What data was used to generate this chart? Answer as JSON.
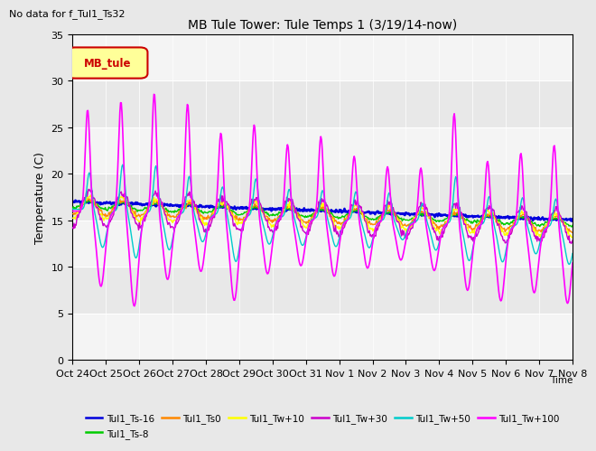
{
  "title": "MB Tule Tower: Tule Temps 1 (3/19/14-now)",
  "top_left_text": "No data for f_Tul1_Ts32",
  "ylabel": "Temperature (C)",
  "ylim": [
    0,
    35
  ],
  "yticks": [
    0,
    5,
    10,
    15,
    20,
    25,
    30,
    35
  ],
  "legend_box_label": "MB_tule",
  "legend_box_color": "#ffff99",
  "legend_box_border": "#cc0000",
  "background_color": "#e8e8e8",
  "plot_bg_color": "#e8e8e8",
  "x_labels": [
    "Oct 24",
    "Oct 25",
    "Oct 26",
    "Oct 27",
    "Oct 28",
    "Oct 29",
    "Oct 30",
    "Oct 31",
    "Nov 1",
    "Nov 2",
    "Nov 3",
    "Nov 4",
    "Nov 5",
    "Nov 6",
    "Nov 7",
    "Nov 8"
  ],
  "series": [
    {
      "label": "Tul1_Ts-16",
      "color": "#0000dd",
      "linewidth": 1.8
    },
    {
      "label": "Tul1_Ts-8",
      "color": "#00cc00",
      "linewidth": 1.0
    },
    {
      "label": "Tul1_Ts0",
      "color": "#ff8800",
      "linewidth": 1.0
    },
    {
      "label": "Tul1_Tw+10",
      "color": "#ffff00",
      "linewidth": 1.0
    },
    {
      "label": "Tul1_Tw+30",
      "color": "#cc00cc",
      "linewidth": 1.0
    },
    {
      "label": "Tul1_Tw+50",
      "color": "#00cccc",
      "linewidth": 1.0
    },
    {
      "label": "Tul1_Tw+100",
      "color": "#ff00ff",
      "linewidth": 1.2
    }
  ]
}
